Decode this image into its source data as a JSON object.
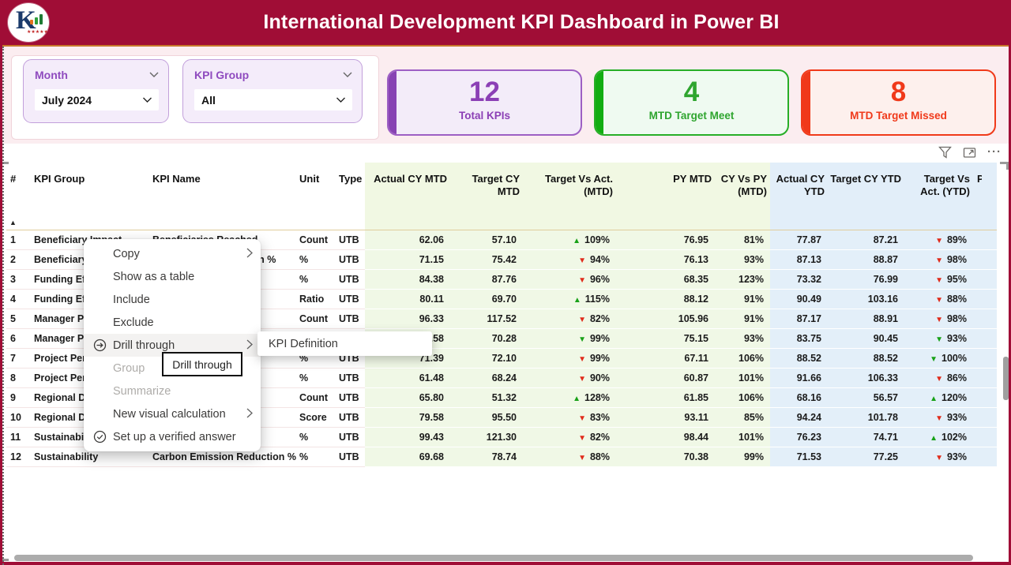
{
  "header": {
    "title": "International Development KPI Dashboard in Power BI"
  },
  "filters": {
    "month": {
      "label": "Month",
      "value": "July 2024"
    },
    "kpi_group": {
      "label": "KPI Group",
      "value": "All"
    }
  },
  "cards": [
    {
      "id": "total",
      "number": "12",
      "label": "Total KPIs",
      "accent": "#8B3FB5"
    },
    {
      "id": "meet",
      "number": "4",
      "label": "MTD Target Meet",
      "accent": "#12AD12"
    },
    {
      "id": "missed",
      "number": "8",
      "label": "MTD Target Missed",
      "accent": "#F0391A"
    }
  ],
  "colors": {
    "header_bar": "#A00D36",
    "indicator_green": "#18A118",
    "indicator_red": "#E02B1B"
  },
  "visual_header": {
    "icons": [
      "filter-icon",
      "focus-mode-icon",
      "more-options-icon"
    ]
  },
  "table": {
    "sort_indicator": "▲",
    "columns": [
      {
        "label": "#",
        "zone": "plain",
        "align": "left"
      },
      {
        "label": "KPI Group",
        "zone": "plain",
        "align": "left"
      },
      {
        "label": "KPI Name",
        "zone": "plain",
        "align": "left"
      },
      {
        "label": "Unit",
        "zone": "plain",
        "align": "left"
      },
      {
        "label": "Type",
        "zone": "plain",
        "align": "left"
      },
      {
        "label": "Actual CY MTD",
        "zone": "mtd",
        "align": "right"
      },
      {
        "label": "Target CY MTD",
        "zone": "mtd",
        "align": "right"
      },
      {
        "label": "Target Vs Act. (MTD)",
        "zone": "mtd",
        "align": "right"
      },
      {
        "label": "PY MTD",
        "zone": "mtd",
        "align": "right"
      },
      {
        "label": "CY Vs PY (MTD)",
        "zone": "mtd",
        "align": "right"
      },
      {
        "label": "Actual CY YTD",
        "zone": "ytd",
        "align": "right"
      },
      {
        "label": "Target CY YTD",
        "zone": "ytd",
        "align": "right"
      },
      {
        "label": "Target Vs Act. (YTD)",
        "zone": "ytd",
        "align": "right"
      },
      {
        "label": "P",
        "zone": "ytd",
        "align": "left",
        "clipped": true
      }
    ],
    "rows": [
      {
        "n": "1",
        "group": "Beneficiary Impact",
        "name": "Beneficiaries Reached",
        "unit": "Count",
        "type": "UTB",
        "amtd": "62.06",
        "tmtd": "57.10",
        "tva_mtd": {
          "dir": "up",
          "color": "green",
          "val": "109%"
        },
        "py": "76.95",
        "cyvspy": "81%",
        "aytd": "77.87",
        "tytd": "87.21",
        "tva_ytd": {
          "dir": "down",
          "color": "red",
          "val": "89%"
        }
      },
      {
        "n": "2",
        "group": "Beneficiary Impact",
        "name": "Beneficiary Satisfaction %",
        "unit": "%",
        "type": "UTB",
        "amtd": "71.15",
        "tmtd": "75.42",
        "tva_mtd": {
          "dir": "down",
          "color": "red",
          "val": "94%"
        },
        "py": "76.13",
        "cyvspy": "93%",
        "aytd": "87.13",
        "tytd": "88.87",
        "tva_ytd": {
          "dir": "down",
          "color": "red",
          "val": "98%"
        }
      },
      {
        "n": "3",
        "group": "Funding Efficiency",
        "name": "",
        "unit": "%",
        "type": "UTB",
        "amtd": "84.38",
        "tmtd": "87.76",
        "tva_mtd": {
          "dir": "down",
          "color": "red",
          "val": "96%"
        },
        "py": "68.35",
        "cyvspy": "123%",
        "aytd": "73.32",
        "tytd": "76.99",
        "tva_ytd": {
          "dir": "down",
          "color": "red",
          "val": "95%"
        }
      },
      {
        "n": "4",
        "group": "Funding Efficiency",
        "name": "",
        "unit": "Ratio",
        "type": "UTB",
        "amtd": "80.11",
        "tmtd": "69.70",
        "tva_mtd": {
          "dir": "up",
          "color": "green",
          "val": "115%"
        },
        "py": "88.12",
        "cyvspy": "91%",
        "aytd": "90.49",
        "tytd": "103.16",
        "tva_ytd": {
          "dir": "down",
          "color": "red",
          "val": "88%"
        }
      },
      {
        "n": "5",
        "group": "Manager Performance",
        "name": "",
        "unit": "Count",
        "type": "UTB",
        "amtd": "96.33",
        "tmtd": "117.52",
        "tva_mtd": {
          "dir": "down",
          "color": "red",
          "val": "82%"
        },
        "py": "105.96",
        "cyvspy": "91%",
        "aytd": "87.17",
        "tytd": "88.91",
        "tva_ytd": {
          "dir": "down",
          "color": "red",
          "val": "98%"
        }
      },
      {
        "n": "6",
        "group": "Manager Performance",
        "name": "",
        "unit": "",
        "type": "",
        "amtd": "69.58",
        "tmtd": "70.28",
        "tva_mtd": {
          "dir": "down",
          "color": "green",
          "val": "99%"
        },
        "py": "75.15",
        "cyvspy": "93%",
        "aytd": "83.75",
        "tytd": "90.45",
        "tva_ytd": {
          "dir": "down",
          "color": "green",
          "val": "93%"
        }
      },
      {
        "n": "7",
        "group": "Project Performance",
        "name": "",
        "unit": "%",
        "type": "UTB",
        "amtd": "71.39",
        "tmtd": "72.10",
        "tva_mtd": {
          "dir": "down",
          "color": "red",
          "val": "99%"
        },
        "py": "67.11",
        "cyvspy": "106%",
        "aytd": "88.52",
        "tytd": "88.52",
        "tva_ytd": {
          "dir": "down",
          "color": "green",
          "val": "100%"
        }
      },
      {
        "n": "8",
        "group": "Project Performance",
        "name": "",
        "unit": "%",
        "type": "UTB",
        "amtd": "61.48",
        "tmtd": "68.24",
        "tva_mtd": {
          "dir": "down",
          "color": "red",
          "val": "90%"
        },
        "py": "60.87",
        "cyvspy": "101%",
        "aytd": "91.66",
        "tytd": "106.33",
        "tva_ytd": {
          "dir": "down",
          "color": "red",
          "val": "86%"
        }
      },
      {
        "n": "9",
        "group": "Regional Development",
        "name": "",
        "unit": "Count",
        "type": "UTB",
        "amtd": "65.80",
        "tmtd": "51.32",
        "tva_mtd": {
          "dir": "up",
          "color": "green",
          "val": "128%"
        },
        "py": "61.85",
        "cyvspy": "106%",
        "aytd": "68.16",
        "tytd": "56.57",
        "tva_ytd": {
          "dir": "up",
          "color": "green",
          "val": "120%"
        }
      },
      {
        "n": "10",
        "group": "Regional Development",
        "name": "",
        "unit": "Score",
        "type": "UTB",
        "amtd": "79.58",
        "tmtd": "95.50",
        "tva_mtd": {
          "dir": "down",
          "color": "red",
          "val": "83%"
        },
        "py": "93.11",
        "cyvspy": "85%",
        "aytd": "94.24",
        "tytd": "101.78",
        "tva_ytd": {
          "dir": "down",
          "color": "red",
          "val": "93%"
        }
      },
      {
        "n": "11",
        "group": "Sustainability",
        "name": "",
        "unit": "%",
        "type": "UTB",
        "amtd": "99.43",
        "tmtd": "121.30",
        "tva_mtd": {
          "dir": "down",
          "color": "red",
          "val": "82%"
        },
        "py": "98.44",
        "cyvspy": "101%",
        "aytd": "76.23",
        "tytd": "74.71",
        "tva_ytd": {
          "dir": "up",
          "color": "green",
          "val": "102%"
        }
      },
      {
        "n": "12",
        "group": "Sustainability",
        "name": "Carbon Emission Reduction %",
        "unit": "%",
        "type": "UTB",
        "amtd": "69.68",
        "tmtd": "78.74",
        "tva_mtd": {
          "dir": "down",
          "color": "red",
          "val": "88%"
        },
        "py": "70.38",
        "cyvspy": "99%",
        "aytd": "71.53",
        "tytd": "77.25",
        "tva_ytd": {
          "dir": "down",
          "color": "red",
          "val": "93%"
        }
      }
    ]
  },
  "context_menu": {
    "items": [
      {
        "label": "Copy",
        "chevron": true
      },
      {
        "label": "Show as a table"
      },
      {
        "label": "Include"
      },
      {
        "label": "Exclude"
      },
      {
        "label": "Drill through",
        "icon": "drill-through-icon",
        "chevron": true,
        "highlighted": true
      },
      {
        "label": "Group",
        "disabled": true
      },
      {
        "label": "Summarize",
        "disabled": true
      },
      {
        "label": "New visual calculation",
        "chevron": true
      },
      {
        "label": "Set up a verified answer",
        "icon": "verified-answer-icon"
      }
    ],
    "submenu": {
      "items": [
        {
          "label": "KPI Definition"
        }
      ]
    },
    "tooltip": {
      "label": "Drill through"
    }
  }
}
